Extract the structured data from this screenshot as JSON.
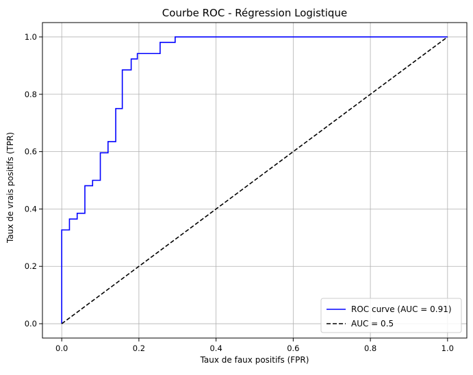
{
  "chart_data": {
    "type": "line",
    "title": "Courbe ROC - Régression Logistique",
    "xlabel": "Taux de faux positifs (FPR)",
    "ylabel": "Taux de vrais positifs (TPR)",
    "xlim": [
      -0.05,
      1.05
    ],
    "ylim": [
      -0.05,
      1.05
    ],
    "xticks": [
      "0.0",
      "0.2",
      "0.4",
      "0.6",
      "0.8",
      "1.0"
    ],
    "yticks": [
      "0.0",
      "0.2",
      "0.4",
      "0.6",
      "0.8",
      "1.0"
    ],
    "grid": true,
    "legend_position": "lower-right",
    "series": [
      {
        "name": "ROC curve (AUC = 0.91)",
        "color": "#0000ff",
        "style": "solid",
        "x": [
          0.0,
          0.0,
          0.02,
          0.02,
          0.04,
          0.04,
          0.06,
          0.06,
          0.08,
          0.08,
          0.1,
          0.1,
          0.12,
          0.12,
          0.14,
          0.14,
          0.157,
          0.157,
          0.18,
          0.18,
          0.196,
          0.196,
          0.255,
          0.255,
          0.294,
          0.294,
          1.0
        ],
        "y": [
          0.0,
          0.327,
          0.327,
          0.365,
          0.365,
          0.385,
          0.385,
          0.481,
          0.481,
          0.5,
          0.5,
          0.596,
          0.596,
          0.635,
          0.635,
          0.75,
          0.75,
          0.885,
          0.885,
          0.923,
          0.923,
          0.942,
          0.942,
          0.981,
          0.981,
          1.0,
          1.0
        ]
      },
      {
        "name": "AUC = 0.5",
        "color": "#000000",
        "style": "dashed",
        "x": [
          0.0,
          1.0
        ],
        "y": [
          0.0,
          1.0
        ]
      }
    ]
  }
}
